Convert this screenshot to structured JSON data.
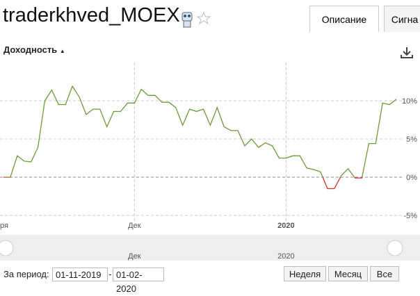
{
  "header": {
    "title": "traderkhved_MOEX",
    "tabs": [
      "Описание",
      "Сигна"
    ]
  },
  "chart_data": {
    "type": "line",
    "title": "Доходность",
    "categories": [
      "ря",
      null,
      null,
      null,
      null,
      null,
      null,
      null,
      null,
      null,
      null,
      null,
      null,
      null,
      null,
      null,
      null,
      null,
      null,
      "Дек",
      null,
      null,
      null,
      null,
      null,
      null,
      null,
      null,
      null,
      null,
      null,
      null,
      null,
      null,
      null,
      null,
      null,
      null,
      null,
      null,
      null,
      "2020",
      null,
      null,
      null,
      null,
      null,
      null,
      null,
      null,
      null,
      null,
      null,
      null,
      null,
      null,
      null,
      null
    ],
    "values": [
      0,
      0,
      2.8,
      2.1,
      2.0,
      3.9,
      10.0,
      11.4,
      9.5,
      9.5,
      11.9,
      10.5,
      8.2,
      8.9,
      8.9,
      6.6,
      8.6,
      8.6,
      9.7,
      9.7,
      11.5,
      10.7,
      10.7,
      9.8,
      9.8,
      9.1,
      6.8,
      8.9,
      8.6,
      8.9,
      6.8,
      9.1,
      6.6,
      6.1,
      6.1,
      4.1,
      5.0,
      3.9,
      4.5,
      4.1,
      2.5,
      2.5,
      2.8,
      2.8,
      1.2,
      1.0,
      0.7,
      -1.5,
      -1.5,
      0.2,
      1.1,
      -0.1,
      -0.1,
      4.4,
      4.4,
      9.7,
      9.5,
      10.2
    ],
    "color": "#6b9a3a",
    "negative_color": "#e02a2a",
    "ylim": [
      -6,
      15
    ],
    "yticks": [
      {
        "value": -5,
        "label": "-5%"
      },
      {
        "value": 0,
        "label": "0%"
      },
      {
        "value": 5,
        "label": "5%"
      },
      {
        "value": 10,
        "label": "10%"
      }
    ],
    "grid": true
  },
  "period": {
    "label": "За период:",
    "from": "01-11-2019",
    "separator": "-",
    "to": "01-02-2020",
    "buttons": [
      "Неделя",
      "Месяц",
      "Все"
    ]
  }
}
